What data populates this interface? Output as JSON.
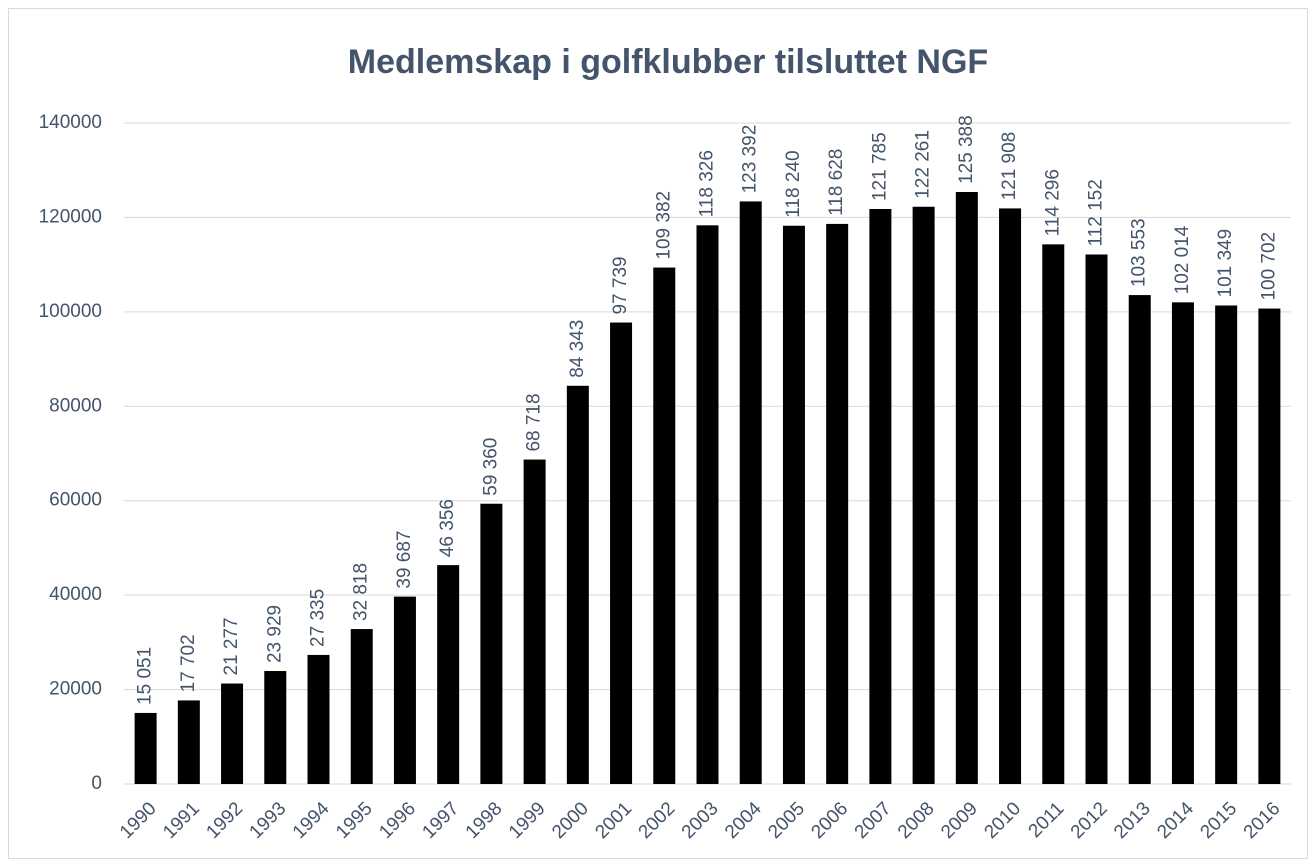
{
  "chart_data": {
    "type": "bar",
    "title": "Medlemskap i golfklubber tilsluttet NGF",
    "categories": [
      "1990",
      "1991",
      "1992",
      "1993",
      "1994",
      "1995",
      "1996",
      "1997",
      "1998",
      "1999",
      "2000",
      "2001",
      "2002",
      "2003",
      "2004",
      "2005",
      "2006",
      "2007",
      "2008",
      "2009",
      "2010",
      "2011",
      "2012",
      "2013",
      "2014",
      "2015",
      "2016"
    ],
    "values": [
      15051,
      17702,
      21277,
      23929,
      27335,
      32818,
      39687,
      46356,
      59360,
      68718,
      84343,
      97739,
      109382,
      118326,
      123392,
      118240,
      118628,
      121785,
      122261,
      125388,
      121908,
      114296,
      112152,
      103553,
      102014,
      101349,
      100702
    ],
    "value_labels": [
      "15 051",
      "17 702",
      "21 277",
      "23 929",
      "27 335",
      "32 818",
      "39 687",
      "46 356",
      "59 360",
      "68 718",
      "84 343",
      "97 739",
      "109 382",
      "118 326",
      "123 392",
      "118 240",
      "118 628",
      "121 785",
      "122 261",
      "125 388",
      "121 908",
      "114 296",
      "112 152",
      "103 553",
      "102 014",
      "101 349",
      "100 702"
    ],
    "color": "#000000",
    "ylim": [
      0,
      140000
    ],
    "yticks": [
      0,
      20000,
      40000,
      60000,
      80000,
      100000,
      120000,
      140000
    ],
    "grid": true
  }
}
